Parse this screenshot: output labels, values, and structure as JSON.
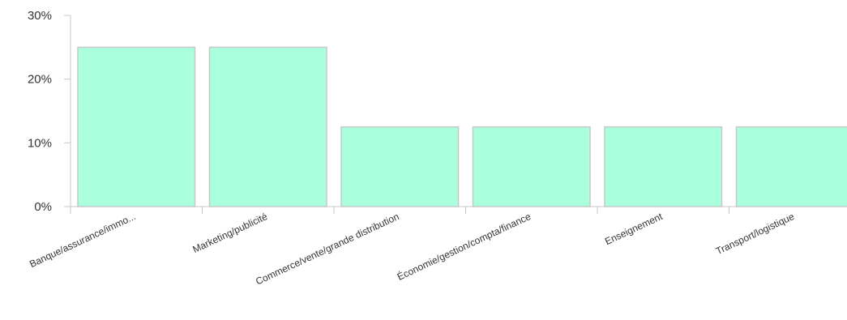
{
  "chart_data": {
    "type": "bar",
    "categories": [
      "Banque/assurance/immo...",
      "Marketing/publicité",
      "Commerce/vente/grande distribution",
      "Économie/gestion/compta/finance",
      "Enseignement",
      "Transport/logistique"
    ],
    "values": [
      25,
      25,
      12.5,
      12.5,
      12.5,
      12.5
    ],
    "title": "",
    "xlabel": "",
    "ylabel": "",
    "ylim": [
      0,
      30
    ],
    "yticks": [
      0,
      10,
      20,
      30
    ],
    "ytick_labels": [
      "0%",
      "10%",
      "20%",
      "30%"
    ],
    "grid": false,
    "colors": {
      "bar_fill": "#aaffdd",
      "bar_stroke": "#c8c8c8",
      "axis": "#c8c8c8"
    }
  }
}
